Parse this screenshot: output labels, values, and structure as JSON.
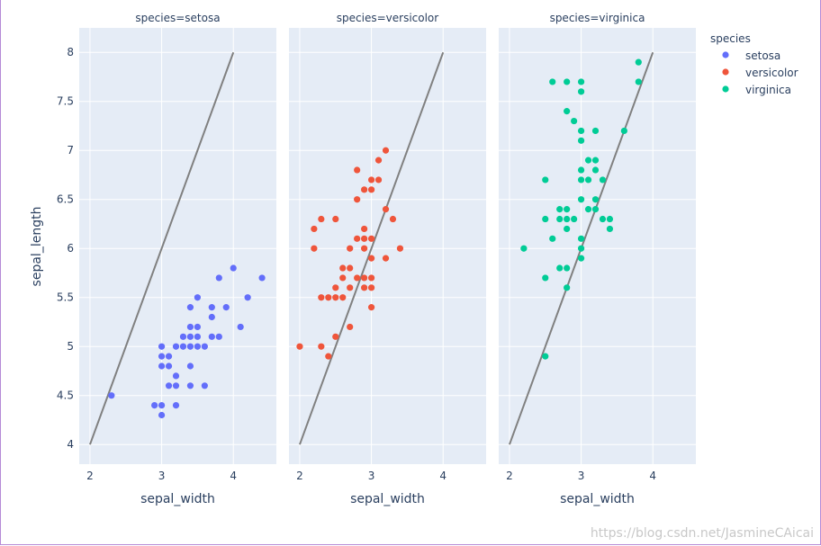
{
  "chart_data": {
    "type": "scatter",
    "facet_variable": "species",
    "xlabel": "sepal_width",
    "ylabel": "sepal_length",
    "xlim": [
      1.85,
      4.6
    ],
    "ylim": [
      3.8,
      8.25
    ],
    "x_ticks": [
      2,
      3,
      4
    ],
    "y_ticks": [
      4,
      4.5,
      5,
      5.5,
      6,
      6.5,
      7,
      7.5,
      8
    ],
    "y_tick_labels": [
      "4",
      "4.5",
      "5",
      "5.5",
      "6",
      "6.5",
      "7",
      "7.5",
      "8"
    ],
    "grid": true,
    "legend": {
      "title": "species",
      "placement": "right"
    },
    "reference_line": {
      "x": [
        2,
        4
      ],
      "y": [
        4,
        8
      ],
      "color": "#808080"
    },
    "facets": [
      {
        "title": "species=setosa",
        "name": "setosa",
        "color": "#636efa",
        "points": [
          [
            2.3,
            4.5
          ],
          [
            2.9,
            4.4
          ],
          [
            3.0,
            4.4
          ],
          [
            3.0,
            4.3
          ],
          [
            3.0,
            4.8
          ],
          [
            3.0,
            4.9
          ],
          [
            3.0,
            5.0
          ],
          [
            3.1,
            4.9
          ],
          [
            3.1,
            4.8
          ],
          [
            3.1,
            4.6
          ],
          [
            3.2,
            4.7
          ],
          [
            3.2,
            4.6
          ],
          [
            3.2,
            4.4
          ],
          [
            3.2,
            5.0
          ],
          [
            3.3,
            5.0
          ],
          [
            3.3,
            5.1
          ],
          [
            3.4,
            5.0
          ],
          [
            3.4,
            5.1
          ],
          [
            3.4,
            5.2
          ],
          [
            3.4,
            5.4
          ],
          [
            3.4,
            4.8
          ],
          [
            3.4,
            4.6
          ],
          [
            3.5,
            5.0
          ],
          [
            3.5,
            5.1
          ],
          [
            3.5,
            5.2
          ],
          [
            3.5,
            5.5
          ],
          [
            3.6,
            4.6
          ],
          [
            3.6,
            5.0
          ],
          [
            3.7,
            5.1
          ],
          [
            3.7,
            5.3
          ],
          [
            3.7,
            5.4
          ],
          [
            3.8,
            5.1
          ],
          [
            3.8,
            5.7
          ],
          [
            3.9,
            5.4
          ],
          [
            4.0,
            5.8
          ],
          [
            4.1,
            5.2
          ],
          [
            4.2,
            5.5
          ],
          [
            4.4,
            5.7
          ]
        ]
      },
      {
        "title": "species=versicolor",
        "name": "versicolor",
        "color": "#ef553b",
        "points": [
          [
            2.0,
            5.0
          ],
          [
            2.2,
            6.0
          ],
          [
            2.2,
            6.2
          ],
          [
            2.3,
            5.0
          ],
          [
            2.3,
            5.5
          ],
          [
            2.3,
            6.3
          ],
          [
            2.4,
            4.9
          ],
          [
            2.4,
            5.5
          ],
          [
            2.5,
            5.5
          ],
          [
            2.5,
            5.1
          ],
          [
            2.5,
            5.6
          ],
          [
            2.5,
            6.3
          ],
          [
            2.6,
            5.5
          ],
          [
            2.6,
            5.7
          ],
          [
            2.6,
            5.8
          ],
          [
            2.7,
            5.2
          ],
          [
            2.7,
            5.6
          ],
          [
            2.7,
            5.8
          ],
          [
            2.7,
            6.0
          ],
          [
            2.8,
            5.7
          ],
          [
            2.8,
            6.1
          ],
          [
            2.8,
            6.5
          ],
          [
            2.8,
            6.8
          ],
          [
            2.9,
            5.6
          ],
          [
            2.9,
            5.7
          ],
          [
            2.9,
            6.0
          ],
          [
            2.9,
            6.1
          ],
          [
            2.9,
            6.2
          ],
          [
            2.9,
            6.6
          ],
          [
            3.0,
            5.4
          ],
          [
            3.0,
            5.6
          ],
          [
            3.0,
            5.7
          ],
          [
            3.0,
            5.9
          ],
          [
            3.0,
            6.1
          ],
          [
            3.0,
            6.6
          ],
          [
            3.0,
            6.7
          ],
          [
            3.1,
            6.7
          ],
          [
            3.1,
            6.9
          ],
          [
            3.2,
            5.9
          ],
          [
            3.2,
            6.4
          ],
          [
            3.2,
            7.0
          ],
          [
            3.3,
            6.3
          ],
          [
            3.4,
            6.0
          ]
        ]
      },
      {
        "title": "species=virginica",
        "name": "virginica",
        "color": "#00cc96",
        "points": [
          [
            2.2,
            6.0
          ],
          [
            2.5,
            4.9
          ],
          [
            2.5,
            5.7
          ],
          [
            2.5,
            6.3
          ],
          [
            2.5,
            6.7
          ],
          [
            2.6,
            6.1
          ],
          [
            2.6,
            7.7
          ],
          [
            2.7,
            5.8
          ],
          [
            2.7,
            6.3
          ],
          [
            2.7,
            6.4
          ],
          [
            2.8,
            5.6
          ],
          [
            2.8,
            5.8
          ],
          [
            2.8,
            6.2
          ],
          [
            2.8,
            6.3
          ],
          [
            2.8,
            6.4
          ],
          [
            2.8,
            7.4
          ],
          [
            2.8,
            7.7
          ],
          [
            2.9,
            6.3
          ],
          [
            2.9,
            7.3
          ],
          [
            3.0,
            5.9
          ],
          [
            3.0,
            6.0
          ],
          [
            3.0,
            6.1
          ],
          [
            3.0,
            6.5
          ],
          [
            3.0,
            6.7
          ],
          [
            3.0,
            6.8
          ],
          [
            3.0,
            7.1
          ],
          [
            3.0,
            7.2
          ],
          [
            3.0,
            7.6
          ],
          [
            3.0,
            7.7
          ],
          [
            3.1,
            6.4
          ],
          [
            3.1,
            6.7
          ],
          [
            3.1,
            6.9
          ],
          [
            3.2,
            6.4
          ],
          [
            3.2,
            6.5
          ],
          [
            3.2,
            6.8
          ],
          [
            3.2,
            6.9
          ],
          [
            3.2,
            7.2
          ],
          [
            3.3,
            6.3
          ],
          [
            3.3,
            6.7
          ],
          [
            3.4,
            6.2
          ],
          [
            3.4,
            6.3
          ],
          [
            3.6,
            7.2
          ],
          [
            3.8,
            7.7
          ],
          [
            3.8,
            7.9
          ]
        ]
      }
    ]
  },
  "watermark": "https://blog.csdn.net/JasmineCAicai"
}
